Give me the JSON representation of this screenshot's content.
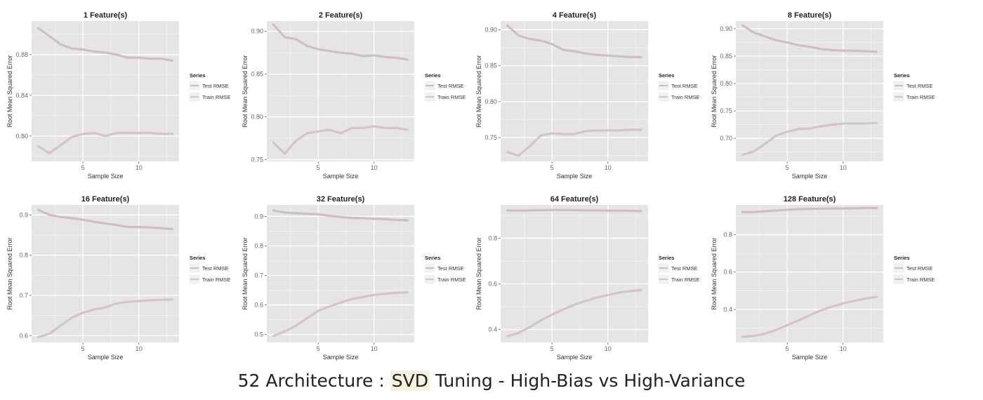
{
  "caption": {
    "prefix": "52 Architecture : ",
    "highlight": "SVD",
    "suffix": " Tuning - High-Bias vs High-Variance"
  },
  "style": {
    "panel_bg": "#e5e5e5",
    "grid_color": "#ffffff",
    "test_color": "#cdbfbf",
    "train_color": "#d4c4c4",
    "text_color": "#333333",
    "tick_color": "#666666"
  },
  "chart_data": [
    {
      "type": "line",
      "title": "1  Feature(s)",
      "xlabel": "Sample Size",
      "ylabel": "Root Mean Squared Error",
      "xlim": [
        0.4,
        13.6
      ],
      "ylim": [
        0.775,
        0.913
      ],
      "xticks": [
        5,
        10
      ],
      "yticks": [
        0.8,
        0.84,
        0.88
      ],
      "ytick_labels": [
        "0.80",
        "0.84",
        "0.88"
      ],
      "grid": true,
      "legend_title": "Series",
      "series": [
        {
          "name": "Test RMSE",
          "x": [
            1,
            2,
            3,
            4,
            5,
            6,
            7,
            8,
            9,
            10,
            11,
            12,
            13
          ],
          "y": [
            0.906,
            0.898,
            0.89,
            0.886,
            0.885,
            0.883,
            0.882,
            0.88,
            0.877,
            0.877,
            0.876,
            0.876,
            0.874
          ]
        },
        {
          "name": "Train RMSE",
          "x": [
            1,
            2,
            3,
            4,
            5,
            6,
            7,
            8,
            9,
            10,
            11,
            12,
            13
          ],
          "y": [
            0.79,
            0.783,
            0.791,
            0.799,
            0.802,
            0.803,
            0.8,
            0.803,
            0.803,
            0.803,
            0.803,
            0.802,
            0.802
          ]
        }
      ]
    },
    {
      "type": "line",
      "title": "2  Feature(s)",
      "xlabel": "Sample Size",
      "ylabel": "Root Mean Squared Error",
      "xlim": [
        0.4,
        13.6
      ],
      "ylim": [
        0.748,
        0.912
      ],
      "xticks": [
        5,
        10
      ],
      "yticks": [
        0.75,
        0.8,
        0.85,
        0.9
      ],
      "ytick_labels": [
        "0.75",
        "0.80",
        "0.85",
        "0.90"
      ],
      "grid": true,
      "legend_title": "Series",
      "series": [
        {
          "name": "Test RMSE",
          "x": [
            1,
            2,
            3,
            4,
            5,
            6,
            7,
            8,
            9,
            10,
            11,
            12,
            13
          ],
          "y": [
            0.908,
            0.893,
            0.891,
            0.883,
            0.879,
            0.877,
            0.875,
            0.874,
            0.871,
            0.872,
            0.87,
            0.869,
            0.867
          ]
        },
        {
          "name": "Train RMSE",
          "x": [
            1,
            2,
            3,
            4,
            5,
            6,
            7,
            8,
            9,
            10,
            11,
            12,
            13
          ],
          "y": [
            0.77,
            0.757,
            0.772,
            0.781,
            0.783,
            0.785,
            0.781,
            0.787,
            0.787,
            0.789,
            0.787,
            0.787,
            0.785
          ]
        }
      ]
    },
    {
      "type": "line",
      "title": "4  Feature(s)",
      "xlabel": "Sample Size",
      "ylabel": "Root Mean Squared Error",
      "xlim": [
        0.4,
        13.6
      ],
      "ylim": [
        0.717,
        0.912
      ],
      "xticks": [
        5,
        10
      ],
      "yticks": [
        0.75,
        0.8,
        0.85,
        0.9
      ],
      "ytick_labels": [
        "0.75",
        "0.80",
        "0.85",
        "0.90"
      ],
      "grid": true,
      "legend_title": "Series",
      "series": [
        {
          "name": "Test RMSE",
          "x": [
            1,
            2,
            3,
            4,
            5,
            6,
            7,
            8,
            9,
            10,
            11,
            12,
            13
          ],
          "y": [
            0.906,
            0.892,
            0.887,
            0.885,
            0.88,
            0.872,
            0.87,
            0.867,
            0.865,
            0.864,
            0.863,
            0.862,
            0.862
          ]
        },
        {
          "name": "Train RMSE",
          "x": [
            1,
            2,
            3,
            4,
            5,
            6,
            7,
            8,
            9,
            10,
            11,
            12,
            13
          ],
          "y": [
            0.73,
            0.725,
            0.738,
            0.753,
            0.756,
            0.755,
            0.755,
            0.759,
            0.76,
            0.76,
            0.76,
            0.761,
            0.761
          ]
        }
      ]
    },
    {
      "type": "line",
      "title": "8  Feature(s)",
      "xlabel": "Sample Size",
      "ylabel": "Root Mean Squared Error",
      "xlim": [
        0.4,
        13.6
      ],
      "ylim": [
        0.658,
        0.914
      ],
      "xticks": [
        5,
        10
      ],
      "yticks": [
        0.7,
        0.75,
        0.8,
        0.85,
        0.9
      ],
      "ytick_labels": [
        "0.70",
        "0.75",
        "0.80",
        "0.85",
        "0.90"
      ],
      "grid": true,
      "legend_title": "Series",
      "series": [
        {
          "name": "Test RMSE",
          "x": [
            1,
            2,
            3,
            4,
            5,
            6,
            7,
            8,
            9,
            10,
            11,
            12,
            13
          ],
          "y": [
            0.906,
            0.893,
            0.886,
            0.879,
            0.875,
            0.87,
            0.867,
            0.863,
            0.861,
            0.86,
            0.86,
            0.859,
            0.858
          ]
        },
        {
          "name": "Train RMSE",
          "x": [
            1,
            2,
            3,
            4,
            5,
            6,
            7,
            8,
            9,
            10,
            11,
            12,
            13
          ],
          "y": [
            0.67,
            0.676,
            0.69,
            0.705,
            0.712,
            0.717,
            0.718,
            0.722,
            0.725,
            0.727,
            0.727,
            0.727,
            0.728
          ]
        }
      ]
    },
    {
      "type": "line",
      "title": "16  Feature(s)",
      "xlabel": "Sample Size",
      "ylabel": "Root Mean Squared Error",
      "xlim": [
        0.4,
        13.6
      ],
      "ylim": [
        0.583,
        0.925
      ],
      "xticks": [
        5,
        10
      ],
      "yticks": [
        0.6,
        0.7,
        0.8,
        0.9
      ],
      "ytick_labels": [
        "0.6",
        "0.7",
        "0.8",
        "0.9"
      ],
      "grid": true,
      "legend_title": "Series",
      "series": [
        {
          "name": "Test RMSE",
          "x": [
            1,
            2,
            3,
            4,
            5,
            6,
            7,
            8,
            9,
            10,
            11,
            12,
            13
          ],
          "y": [
            0.913,
            0.9,
            0.895,
            0.892,
            0.888,
            0.883,
            0.879,
            0.875,
            0.87,
            0.87,
            0.869,
            0.867,
            0.865
          ]
        },
        {
          "name": "Train RMSE",
          "x": [
            1,
            2,
            3,
            4,
            5,
            6,
            7,
            8,
            9,
            10,
            11,
            12,
            13
          ],
          "y": [
            0.596,
            0.605,
            0.625,
            0.645,
            0.657,
            0.665,
            0.67,
            0.68,
            0.684,
            0.686,
            0.688,
            0.689,
            0.69
          ]
        }
      ]
    },
    {
      "type": "line",
      "title": "32  Feature(s)",
      "xlabel": "Sample Size",
      "ylabel": "Root Mean Squared Error",
      "xlim": [
        0.4,
        13.6
      ],
      "ylim": [
        0.473,
        0.939
      ],
      "xticks": [
        5,
        10
      ],
      "yticks": [
        0.5,
        0.6,
        0.7,
        0.8,
        0.9
      ],
      "ytick_labels": [
        "0.5",
        "0.6",
        "0.7",
        "0.8",
        "0.9"
      ],
      "grid": true,
      "legend_title": "Series",
      "series": [
        {
          "name": "Test RMSE",
          "x": [
            1,
            2,
            3,
            4,
            5,
            6,
            7,
            8,
            9,
            10,
            11,
            12,
            13
          ],
          "y": [
            0.92,
            0.913,
            0.911,
            0.909,
            0.907,
            0.902,
            0.898,
            0.895,
            0.894,
            0.892,
            0.891,
            0.888,
            0.887
          ]
        },
        {
          "name": "Train RMSE",
          "x": [
            1,
            2,
            3,
            4,
            5,
            6,
            7,
            8,
            9,
            10,
            11,
            12,
            13
          ],
          "y": [
            0.495,
            0.51,
            0.53,
            0.555,
            0.58,
            0.595,
            0.608,
            0.62,
            0.627,
            0.634,
            0.638,
            0.641,
            0.643
          ]
        }
      ]
    },
    {
      "type": "line",
      "title": "64  Feature(s)",
      "xlabel": "Sample Size",
      "ylabel": "Root Mean Squared Error",
      "xlim": [
        0.4,
        13.6
      ],
      "ylim": [
        0.343,
        0.946
      ],
      "xticks": [
        5,
        10
      ],
      "yticks": [
        0.4,
        0.6,
        0.8
      ],
      "ytick_labels": [
        "0.4",
        "0.6",
        "0.8"
      ],
      "grid": true,
      "legend_title": "Series",
      "series": [
        {
          "name": "Test RMSE",
          "x": [
            1,
            2,
            3,
            4,
            5,
            6,
            7,
            8,
            9,
            10,
            11,
            12,
            13
          ],
          "y": [
            0.922,
            0.921,
            0.922,
            0.923,
            0.924,
            0.924,
            0.923,
            0.922,
            0.922,
            0.921,
            0.921,
            0.92,
            0.919
          ]
        },
        {
          "name": "Train RMSE",
          "x": [
            1,
            2,
            3,
            4,
            5,
            6,
            7,
            8,
            9,
            10,
            11,
            12,
            13
          ],
          "y": [
            0.37,
            0.385,
            0.41,
            0.44,
            0.465,
            0.488,
            0.508,
            0.525,
            0.54,
            0.551,
            0.561,
            0.568,
            0.573
          ]
        }
      ]
    },
    {
      "type": "line",
      "title": "128  Feature(s)",
      "xlabel": "Sample Size",
      "ylabel": "Root Mean Squared Error",
      "xlim": [
        0.4,
        13.6
      ],
      "ylim": [
        0.223,
        0.96
      ],
      "xticks": [
        5,
        10
      ],
      "yticks": [
        0.4,
        0.6,
        0.8
      ],
      "ytick_labels": [
        "0.4",
        "0.6",
        "0.8"
      ],
      "grid": true,
      "legend_title": "Series",
      "series": [
        {
          "name": "Test RMSE",
          "x": [
            1,
            2,
            3,
            4,
            5,
            6,
            7,
            8,
            9,
            10,
            11,
            12,
            13
          ],
          "y": [
            0.922,
            0.922,
            0.926,
            0.93,
            0.934,
            0.937,
            0.939,
            0.94,
            0.941,
            0.941,
            0.942,
            0.943,
            0.943
          ]
        },
        {
          "name": "Train RMSE",
          "x": [
            1,
            2,
            3,
            4,
            5,
            6,
            7,
            8,
            9,
            10,
            11,
            12,
            13
          ],
          "y": [
            0.253,
            0.258,
            0.27,
            0.29,
            0.315,
            0.342,
            0.368,
            0.394,
            0.415,
            0.432,
            0.446,
            0.458,
            0.467
          ]
        }
      ]
    }
  ]
}
